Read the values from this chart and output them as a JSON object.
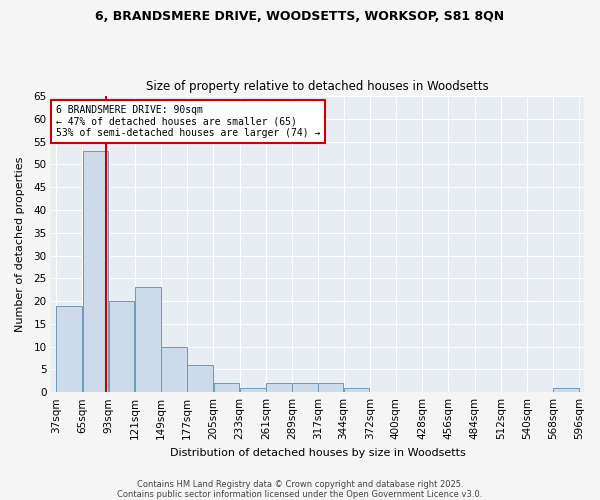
{
  "title1": "6, BRANDSMERE DRIVE, WOODSETTS, WORKSOP, S81 8QN",
  "title2": "Size of property relative to detached houses in Woodsetts",
  "xlabel": "Distribution of detached houses by size in Woodsetts",
  "ylabel": "Number of detached properties",
  "bin_edges": [
    37,
    65,
    93,
    121,
    149,
    177,
    205,
    233,
    261,
    289,
    317,
    344,
    372,
    400,
    428,
    456,
    484,
    512,
    540,
    568,
    596
  ],
  "heights": [
    19,
    53,
    20,
    23,
    10,
    6,
    2,
    1,
    2,
    2,
    2,
    1,
    0,
    0,
    0,
    0,
    0,
    0,
    0,
    1
  ],
  "bar_color": "#ccdaea",
  "bar_edge_color": "#6e9ab8",
  "red_line_x": 90,
  "annotation_line1": "6 BRANDSMERE DRIVE: 90sqm",
  "annotation_line2": "← 47% of detached houses are smaller (65)",
  "annotation_line3": "53% of semi-detached houses are larger (74) →",
  "annotation_box_color": "#ffffff",
  "annotation_box_edge_color": "#cc0000",
  "ylim": [
    0,
    65
  ],
  "yticks": [
    0,
    5,
    10,
    15,
    20,
    25,
    30,
    35,
    40,
    45,
    50,
    55,
    60,
    65
  ],
  "background_color": "#e8edf3",
  "grid_color": "#ffffff",
  "fig_background": "#f5f5f5",
  "footer1": "Contains HM Land Registry data © Crown copyright and database right 2025.",
  "footer2": "Contains public sector information licensed under the Open Government Licence v3.0."
}
